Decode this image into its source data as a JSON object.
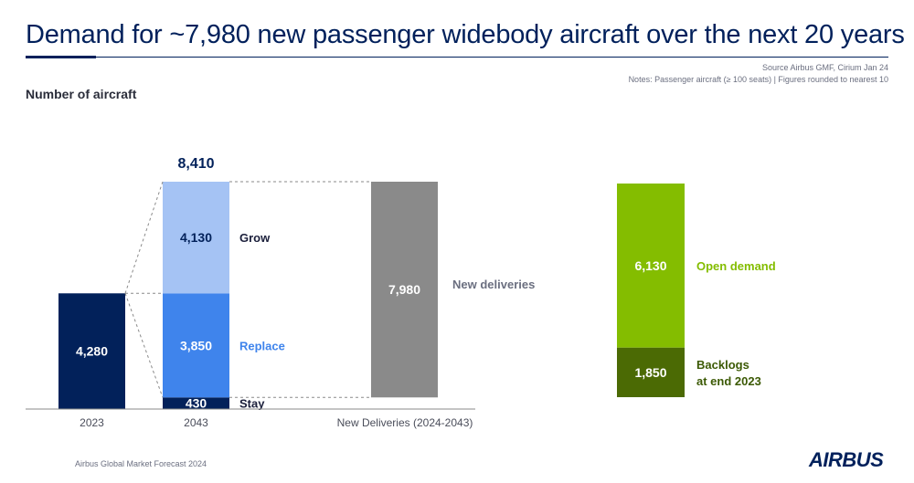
{
  "title": "Demand for ~7,980 new passenger widebody aircraft over the next 20 years",
  "source_line1": "Source Airbus GMF, Cirium Jan 24",
  "source_line2": "Notes: Passenger aircraft (≥ 100 seats) | Figures rounded to nearest 10",
  "unit_label": "Number of aircraft",
  "footer": "Airbus Global Market Forecast 2024",
  "logo": "AIRBUS",
  "colors": {
    "fleet_2023": "#02215a",
    "stay": "#02215a",
    "replace": "#3f84ec",
    "grow": "#a5c3f4",
    "new_deliveries": "#8a8a8a",
    "open_demand": "#84bd00",
    "backlogs": "#4b6a04",
    "replace_label": "#3f84ec",
    "open_label": "#84bd00",
    "backlog_label": "#3c5a05"
  },
  "chart_data": [
    {
      "type": "bar",
      "categories": [
        "2023",
        "2043",
        "New Deliveries (2024-2043)"
      ],
      "series": [
        {
          "name": "",
          "category": "2023",
          "value": 4280,
          "value_label": "4,280"
        },
        {
          "name": "Stay",
          "category": "2043",
          "value": 430,
          "value_label": "430"
        },
        {
          "name": "Replace",
          "category": "2043",
          "value": 3850,
          "value_label": "3,850"
        },
        {
          "name": "Grow",
          "category": "2043",
          "value": 4130,
          "value_label": "4,130"
        },
        {
          "name": "New deliveries",
          "category": "New Deliveries (2024-2043)",
          "value": 7980,
          "value_label": "7,980"
        }
      ],
      "total_2043": 8410,
      "total_2043_label": "8,410",
      "ylim": [
        0,
        8410
      ]
    },
    {
      "type": "bar",
      "categories": [
        ""
      ],
      "series": [
        {
          "name": "Backlogs\nat end 2023",
          "value": 1850,
          "value_label": "1,850"
        },
        {
          "name": "Open demand",
          "value": 6130,
          "value_label": "6,130"
        }
      ],
      "ylim": [
        0,
        7980
      ]
    }
  ]
}
